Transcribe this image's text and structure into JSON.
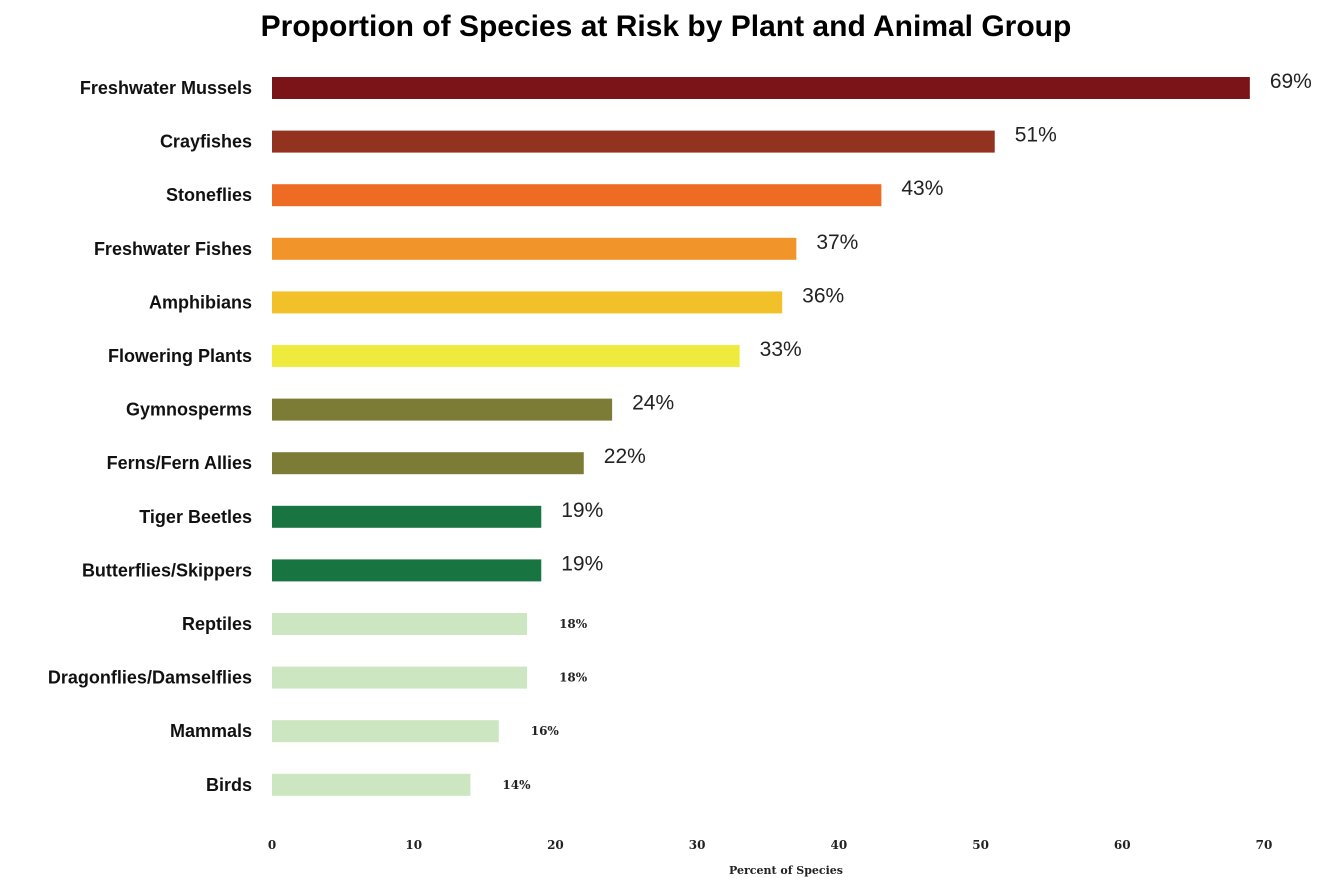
{
  "chart_data": {
    "type": "bar",
    "orientation": "horizontal",
    "title": "Proportion of Species at Risk by Plant and Animal Group",
    "xlabel": "Percent of Species",
    "ylabel": "",
    "xlim": [
      0,
      70
    ],
    "x_ticks": [
      "0",
      "10",
      "20",
      "30",
      "40",
      "50",
      "60",
      "70"
    ],
    "grid": false,
    "categories": [
      "Freshwater Mussels",
      "Crayfishes",
      "Stoneflies",
      "Freshwater Fishes",
      "Amphibians",
      "Flowering Plants",
      "Gymnosperms",
      "Ferns/Fern Allies",
      "Tiger Beetles",
      "Butterflies/Skippers",
      "Reptiles",
      "Dragonflies/Damselflies",
      "Mammals",
      "Birds"
    ],
    "values": [
      69,
      51,
      43,
      37,
      36,
      33,
      24,
      22,
      19,
      19,
      18,
      18,
      16,
      14
    ],
    "value_labels": [
      "69%",
      "51%",
      "43%",
      "37%",
      "36%",
      "33%",
      "24%",
      "22%",
      "19%",
      "19%",
      "18%",
      "18%",
      "16%",
      "14%"
    ],
    "colors": [
      "#7a1418",
      "#93331f",
      "#ee6b24",
      "#f1952a",
      "#f2c12a",
      "#eeea3e",
      "#7c7c36",
      "#7c7c36",
      "#187440",
      "#187440",
      "#cce6c2",
      "#cce6c2",
      "#cce6c2",
      "#cce6c2"
    ],
    "label_style": [
      "big",
      "big",
      "big",
      "big",
      "big",
      "big",
      "big",
      "big",
      "big",
      "big",
      "small",
      "small",
      "small",
      "small"
    ]
  }
}
